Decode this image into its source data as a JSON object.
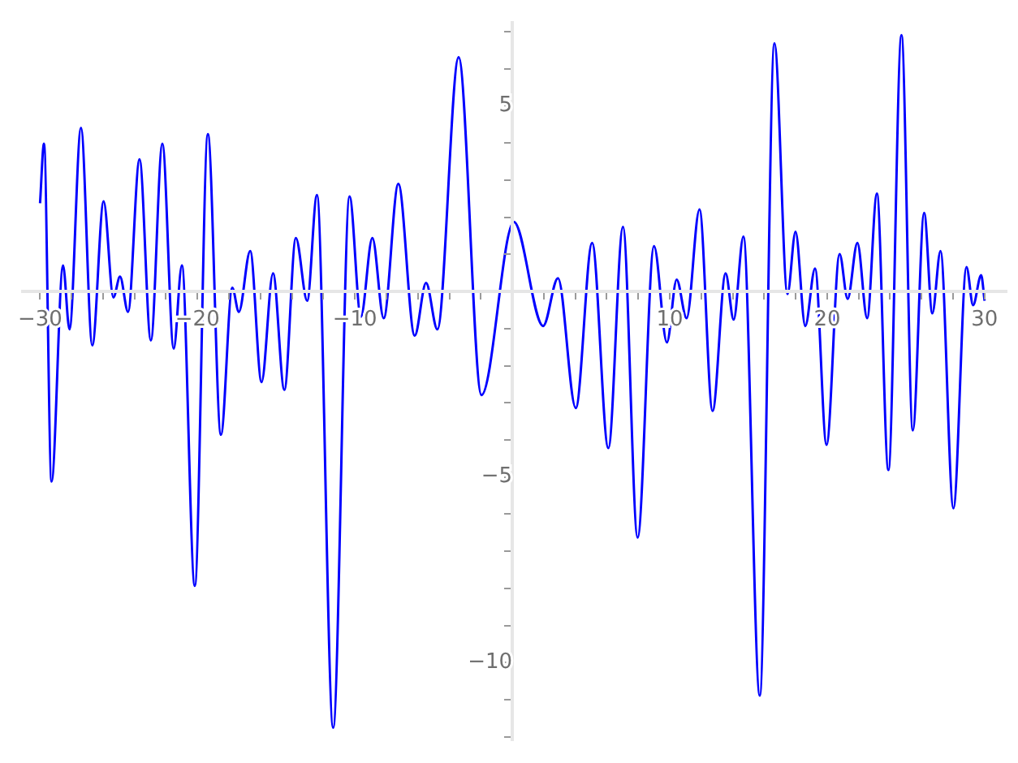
{
  "chart_data": {
    "type": "line",
    "grid": false,
    "marker": "none",
    "line_style": "solid",
    "xlim": [
      -31.1,
      31.4
    ],
    "ylim": [
      -12.1,
      7.25
    ],
    "xticks": [
      {
        "value": -30,
        "label": "−30"
      },
      {
        "value": -28,
        "label": null
      },
      {
        "value": -26,
        "label": null
      },
      {
        "value": -24,
        "label": null
      },
      {
        "value": -22,
        "label": null
      },
      {
        "value": -20,
        "label": "−20"
      },
      {
        "value": -18,
        "label": null
      },
      {
        "value": -16,
        "label": null
      },
      {
        "value": -14,
        "label": null
      },
      {
        "value": -12,
        "label": null
      },
      {
        "value": -10,
        "label": "−10"
      },
      {
        "value": -8,
        "label": null
      },
      {
        "value": -6,
        "label": null
      },
      {
        "value": -4,
        "label": null
      },
      {
        "value": -2,
        "label": null
      },
      {
        "value": 2,
        "label": null
      },
      {
        "value": 4,
        "label": null
      },
      {
        "value": 6,
        "label": null
      },
      {
        "value": 8,
        "label": null
      },
      {
        "value": 10,
        "label": "10"
      },
      {
        "value": 12,
        "label": null
      },
      {
        "value": 14,
        "label": null
      },
      {
        "value": 16,
        "label": null
      },
      {
        "value": 18,
        "label": null
      },
      {
        "value": 20,
        "label": "20"
      },
      {
        "value": 22,
        "label": null
      },
      {
        "value": 24,
        "label": null
      },
      {
        "value": 26,
        "label": null
      },
      {
        "value": 28,
        "label": null
      },
      {
        "value": 30,
        "label": "30"
      }
    ],
    "yticks": [
      {
        "value": -12,
        "label": null
      },
      {
        "value": -11,
        "label": null
      },
      {
        "value": -10,
        "label": "−10"
      },
      {
        "value": -9,
        "label": null
      },
      {
        "value": -8,
        "label": null
      },
      {
        "value": -7,
        "label": null
      },
      {
        "value": -6,
        "label": null
      },
      {
        "value": -5,
        "label": "−5"
      },
      {
        "value": -4,
        "label": null
      },
      {
        "value": -3,
        "label": null
      },
      {
        "value": -2,
        "label": null
      },
      {
        "value": -1,
        "label": null
      },
      {
        "value": 1,
        "label": null
      },
      {
        "value": 2,
        "label": null
      },
      {
        "value": 3,
        "label": null
      },
      {
        "value": 4,
        "label": null
      },
      {
        "value": 5,
        "label": "5"
      },
      {
        "value": 6,
        "label": null
      },
      {
        "value": 7,
        "label": null
      }
    ],
    "series": [
      {
        "color": "#0000ff",
        "x": [
          -30,
          -29.75,
          -29.27,
          -28.54,
          -28.13,
          -27.4,
          -26.68,
          -25.96,
          -25.34,
          -24.92,
          -24.41,
          -23.68,
          -22.96,
          -22.23,
          -21.51,
          -20.99,
          -20.17,
          -19.34,
          -18.51,
          -17.79,
          -17.37,
          -16.65,
          -15.93,
          -15.2,
          -14.48,
          -13.75,
          -13.03,
          -12.41,
          -11.38,
          -10.34,
          -9.62,
          -8.89,
          -8.17,
          -7.24,
          -6.2,
          -5.48,
          -4.76,
          -3.41,
          -1.96,
          0.1,
          1.96,
          2.9,
          4.03,
          5.07,
          6.1,
          7.03,
          7.96,
          9,
          9.82,
          10.44,
          11.07,
          11.89,
          12.72,
          13.55,
          14.06,
          14.68,
          15.72,
          16.65,
          17.48,
          17.99,
          18.61,
          19.23,
          19.96,
          20.79,
          21.3,
          21.92,
          22.54,
          23.16,
          23.89,
          24.72,
          25.44,
          26.16,
          26.68,
          27.2,
          28.02,
          28.85,
          29.27,
          29.78,
          30
        ],
        "values": [
          2.38,
          3.98,
          -5.12,
          0.7,
          -1.02,
          4.41,
          -1.45,
          2.43,
          -0.16,
          0.4,
          -0.55,
          3.56,
          -1.32,
          3.98,
          -1.54,
          0.7,
          -7.93,
          4.24,
          -3.86,
          0.1,
          -0.55,
          1.09,
          -2.44,
          0.49,
          -2.65,
          1.44,
          -0.25,
          2.6,
          -11.75,
          2.56,
          -0.68,
          1.44,
          -0.72,
          2.9,
          -1.19,
          0.23,
          -1.02,
          6.31,
          -2.79,
          1.87,
          -0.93,
          0.36,
          -3.14,
          1.31,
          -4.22,
          1.74,
          -6.63,
          1.22,
          -1.37,
          0.32,
          -0.72,
          2.21,
          -3.22,
          0.49,
          -0.76,
          1.48,
          -10.89,
          6.69,
          -0.07,
          1.61,
          -0.93,
          0.62,
          -4.13,
          1.01,
          -0.2,
          1.31,
          -0.72,
          2.64,
          -4.81,
          6.91,
          -3.74,
          2.12,
          -0.59,
          1.09,
          -5.84,
          0.66,
          -0.37,
          0.44,
          -0.25
        ]
      }
    ]
  }
}
